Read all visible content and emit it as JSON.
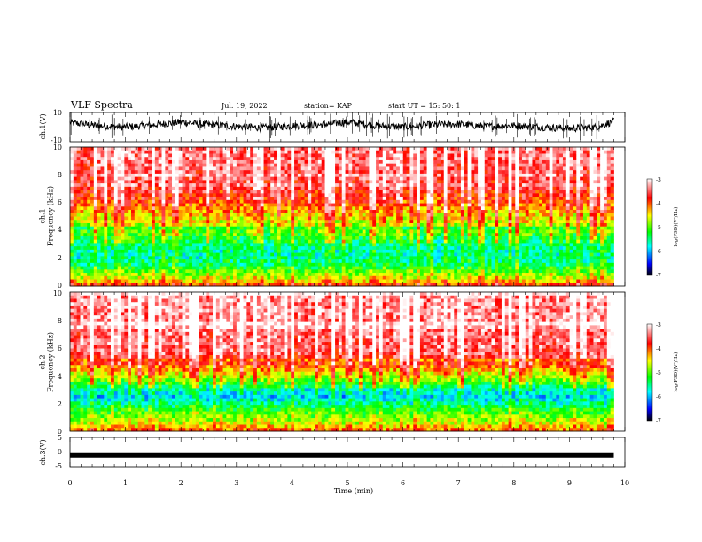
{
  "header": {
    "title": "VLF Spectra",
    "date": "Jul. 19, 2022",
    "station": "station= KAP",
    "start": "start  UT =   15: 50: 1"
  },
  "chart_data": [
    {
      "type": "line",
      "ylabel": "ch.1(V)",
      "ylim": [
        -10,
        10
      ],
      "yticks": [
        "10",
        "-10"
      ],
      "xlim": [
        0,
        10
      ],
      "x": [
        0.0,
        0.5,
        1.0,
        1.5,
        2.0,
        2.5,
        3.0,
        3.5,
        4.0,
        4.5,
        5.0,
        5.5,
        6.0,
        6.5,
        7.0,
        7.5,
        8.0,
        8.5,
        9.0,
        9.5,
        9.8
      ],
      "y": [
        3.0,
        1.0,
        0.0,
        1.5,
        3.5,
        1.5,
        0.5,
        -0.5,
        1.0,
        1.5,
        3.5,
        1.0,
        0.0,
        1.5,
        2.0,
        0.5,
        1.0,
        0.0,
        -1.0,
        0.0,
        4.0
      ],
      "color": "#000000"
    },
    {
      "type": "heatmap",
      "ylabel": "ch.1\nFrequency (kHz)",
      "ylim": [
        0,
        10
      ],
      "yticks": [
        "0",
        "2",
        "4",
        "6",
        "8",
        "10"
      ],
      "xlim": [
        0,
        9.8
      ],
      "colorbar": {
        "label": "log(PSD)(V²/Hz)",
        "range": [
          -7,
          -3
        ],
        "ticks": [
          "-3",
          "-4",
          "-5",
          "-6",
          "-7"
        ],
        "colors": [
          "#000000",
          "#0000ff",
          "#00ffff",
          "#00ff00",
          "#ffff00",
          "#ff0000",
          "#ffffff"
        ]
      },
      "frequency_profile_kHz": [
        0,
        0.5,
        1,
        1.5,
        2,
        2.5,
        3,
        3.5,
        4,
        4.5,
        5,
        5.5,
        6,
        7,
        8,
        9,
        10
      ],
      "log_psd_profile": [
        -3.8,
        -4.6,
        -5.0,
        -5.4,
        -5.6,
        -5.6,
        -5.5,
        -5.3,
        -5.0,
        -4.7,
        -4.5,
        -4.3,
        -4.0,
        -3.7,
        -3.6,
        -3.5,
        -3.5
      ]
    },
    {
      "type": "heatmap",
      "ylabel": "ch.2\nFrequency (kHz)",
      "ylim": [
        0,
        10
      ],
      "yticks": [
        "0",
        "2",
        "4",
        "6",
        "8",
        "10"
      ],
      "xlim": [
        0,
        9.8
      ],
      "colorbar": {
        "label": "log(PSD)(V²/Hz)",
        "range": [
          -7,
          -3
        ],
        "ticks": [
          "-3",
          "-4",
          "-5",
          "-6",
          "-7"
        ],
        "colors": [
          "#000000",
          "#0000ff",
          "#00ffff",
          "#00ff00",
          "#ffff00",
          "#ff0000",
          "#ffffff"
        ]
      },
      "frequency_profile_kHz": [
        0,
        0.5,
        1,
        1.5,
        2,
        2.5,
        3,
        3.5,
        4,
        4.5,
        5,
        5.5,
        6,
        7,
        8,
        9,
        10
      ],
      "log_psd_profile": [
        -4.0,
        -4.6,
        -4.9,
        -5.2,
        -5.6,
        -5.9,
        -5.7,
        -5.2,
        -4.7,
        -4.3,
        -3.9,
        -3.6,
        -3.5,
        -3.5,
        -3.4,
        -3.4,
        -3.4
      ]
    },
    {
      "type": "line",
      "ylabel": "ch.3(V)",
      "ylim": [
        -5,
        5
      ],
      "yticks": [
        "5",
        "0",
        "-5"
      ],
      "xlim": [
        0,
        10
      ],
      "x": [
        0.0,
        9.8
      ],
      "y": [
        -1.0,
        -1.0
      ],
      "xlabel": "Time (min)",
      "xticks": [
        "0",
        "1",
        "2",
        "3",
        "4",
        "5",
        "6",
        "7",
        "8",
        "9",
        "10"
      ],
      "color": "#000000"
    }
  ]
}
